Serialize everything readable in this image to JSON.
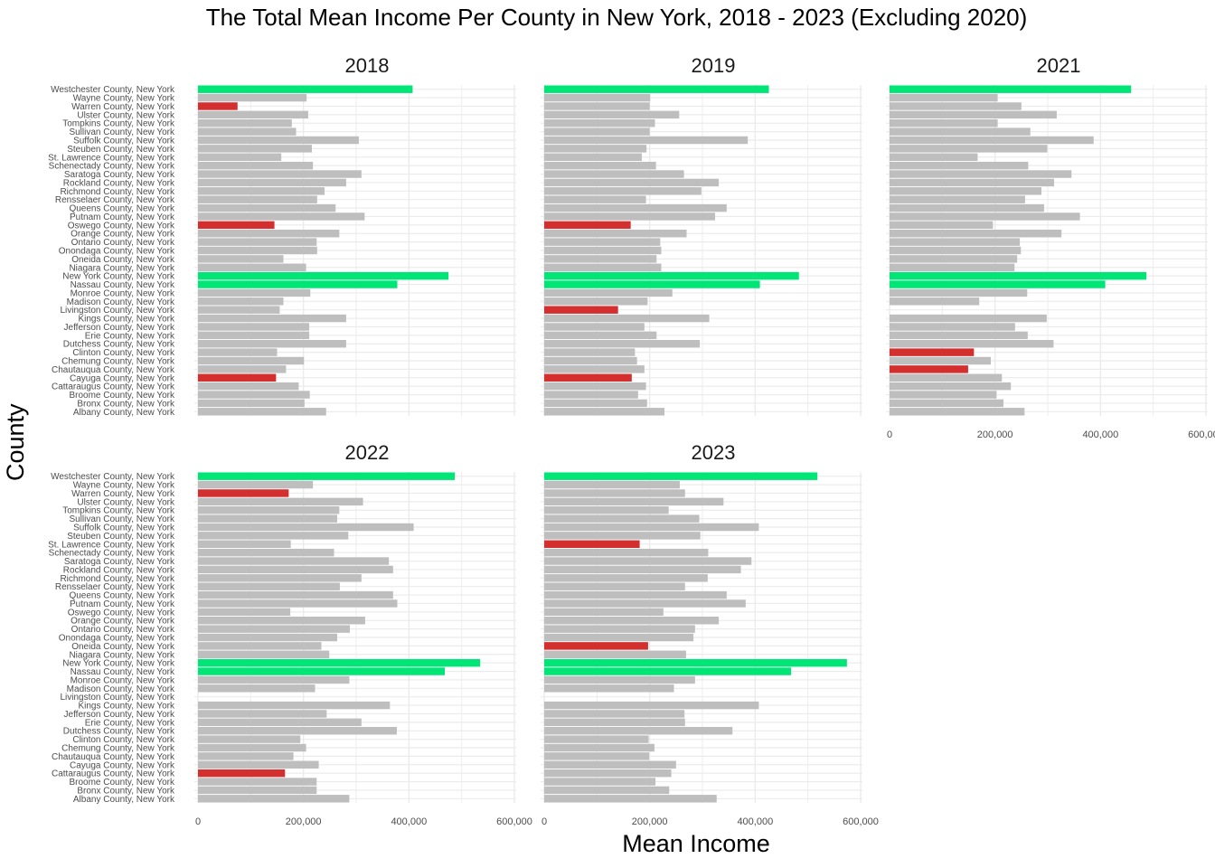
{
  "chart_data": {
    "type": "bar",
    "orientation": "horizontal",
    "title": "The Total Mean Income Per County in New York, 2018 - 2023 (Excluding 2020)",
    "xlabel": "Mean Income",
    "ylabel": "County",
    "xlim": [
      0,
      600000
    ],
    "x_ticks": [
      "0",
      "200,000",
      "400,000",
      "600,000"
    ],
    "grid": "on",
    "colors": {
      "default": "#bebebe",
      "highest": "#00e676",
      "lowest": "#d32f2f",
      "grid": "#ebebeb"
    },
    "categories": [
      "Westchester County, New York",
      "Wayne County, New York",
      "Warren County, New York",
      "Ulster County, New York",
      "Tompkins County, New York",
      "Sullivan County, New York",
      "Suffolk County, New York",
      "Steuben County, New York",
      "St. Lawrence County, New York",
      "Schenectady County, New York",
      "Saratoga County, New York",
      "Rockland County, New York",
      "Richmond County, New York",
      "Rensselaer County, New York",
      "Queens County, New York",
      "Putnam County, New York",
      "Oswego County, New York",
      "Orange County, New York",
      "Ontario County, New York",
      "Onondaga County, New York",
      "Oneida County, New York",
      "Niagara County, New York",
      "New York County, New York",
      "Nassau County, New York",
      "Monroe County, New York",
      "Madison County, New York",
      "Livingston County, New York",
      "Kings County, New York",
      "Jefferson County, New York",
      "Erie County, New York",
      "Dutchess County, New York",
      "Clinton County, New York",
      "Chemung County, New York",
      "Chautauqua County, New York",
      "Cayuga County, New York",
      "Cattaraugus County, New York",
      "Broome County, New York",
      "Bronx County, New York",
      "Albany County, New York"
    ],
    "panels": [
      {
        "year": "2018",
        "values": [
          407000,
          206000,
          75000,
          209000,
          178000,
          186000,
          305000,
          216000,
          158000,
          218000,
          310000,
          281000,
          240000,
          226000,
          261000,
          316000,
          145000,
          268000,
          225000,
          226000,
          162000,
          205000,
          475000,
          378000,
          213000,
          162000,
          155000,
          281000,
          211000,
          211000,
          281000,
          150000,
          201000,
          167000,
          148000,
          191000,
          212000,
          202000,
          243000
        ],
        "highlight": [
          "highest",
          null,
          "lowest",
          null,
          null,
          null,
          null,
          null,
          null,
          null,
          null,
          null,
          null,
          null,
          null,
          null,
          "lowest",
          null,
          null,
          null,
          null,
          null,
          "highest",
          "highest",
          null,
          null,
          null,
          null,
          null,
          null,
          null,
          null,
          null,
          null,
          "lowest",
          null,
          null,
          null,
          null
        ]
      },
      {
        "year": "2019",
        "values": [
          426000,
          201000,
          200000,
          256000,
          210000,
          200000,
          386000,
          194000,
          185000,
          212000,
          265000,
          331000,
          298000,
          193000,
          346000,
          324000,
          164000,
          270000,
          220000,
          222000,
          213000,
          222000,
          483000,
          409000,
          243000,
          196000,
          140000,
          313000,
          190000,
          213000,
          295000,
          172000,
          176000,
          190000,
          166000,
          193000,
          178000,
          195000,
          228000
        ],
        "highlight": [
          "highest",
          null,
          null,
          null,
          null,
          null,
          null,
          null,
          null,
          null,
          null,
          null,
          null,
          null,
          null,
          null,
          "lowest",
          null,
          null,
          null,
          null,
          null,
          "highest",
          "highest",
          null,
          null,
          "lowest",
          null,
          null,
          null,
          null,
          null,
          null,
          null,
          "lowest",
          null,
          null,
          null,
          null
        ]
      },
      {
        "year": "2021",
        "values": [
          458000,
          205000,
          250000,
          317000,
          205000,
          267000,
          387000,
          299000,
          167000,
          263000,
          345000,
          312000,
          288000,
          257000,
          293000,
          361000,
          196000,
          326000,
          247000,
          249000,
          242000,
          237000,
          487000,
          409000,
          261000,
          170000,
          null,
          298000,
          238000,
          262000,
          311000,
          160000,
          192000,
          149000,
          213000,
          230000,
          203000,
          216000,
          256000
        ],
        "highlight": [
          "highest",
          null,
          null,
          null,
          null,
          null,
          null,
          null,
          null,
          null,
          null,
          null,
          null,
          null,
          null,
          null,
          null,
          null,
          null,
          null,
          null,
          null,
          "highest",
          "highest",
          null,
          null,
          null,
          null,
          null,
          null,
          null,
          "lowest",
          null,
          "lowest",
          null,
          null,
          null,
          null,
          null
        ]
      },
      {
        "year": "2022",
        "values": [
          487000,
          218000,
          172000,
          313000,
          268000,
          264000,
          409000,
          285000,
          176000,
          258000,
          362000,
          370000,
          310000,
          269000,
          370000,
          378000,
          175000,
          317000,
          288000,
          264000,
          234000,
          249000,
          535000,
          468000,
          287000,
          222000,
          null,
          364000,
          244000,
          310000,
          377000,
          194000,
          205000,
          181000,
          229000,
          165000,
          225000,
          225000,
          287000
        ],
        "highlight": [
          "highest",
          null,
          "lowest",
          null,
          null,
          null,
          null,
          null,
          null,
          null,
          null,
          null,
          null,
          null,
          null,
          null,
          null,
          null,
          null,
          null,
          null,
          null,
          "highest",
          "highest",
          null,
          null,
          null,
          null,
          null,
          null,
          null,
          null,
          null,
          null,
          null,
          "lowest",
          null,
          null,
          null
        ]
      },
      {
        "year": "2023",
        "values": [
          518000,
          257000,
          267000,
          340000,
          236000,
          294000,
          407000,
          296000,
          181000,
          311000,
          393000,
          373000,
          310000,
          267000,
          346000,
          382000,
          226000,
          331000,
          286000,
          283000,
          197000,
          269000,
          574000,
          468000,
          286000,
          246000,
          null,
          407000,
          266000,
          267000,
          357000,
          198000,
          209000,
          199000,
          250000,
          241000,
          211000,
          237000,
          327000
        ],
        "highlight": [
          "highest",
          null,
          null,
          null,
          null,
          null,
          null,
          null,
          "lowest",
          null,
          null,
          null,
          null,
          null,
          null,
          null,
          null,
          null,
          null,
          null,
          "lowest",
          null,
          "highest",
          "highest",
          null,
          null,
          null,
          null,
          null,
          null,
          null,
          null,
          null,
          null,
          null,
          null,
          null,
          null,
          null
        ]
      }
    ]
  }
}
